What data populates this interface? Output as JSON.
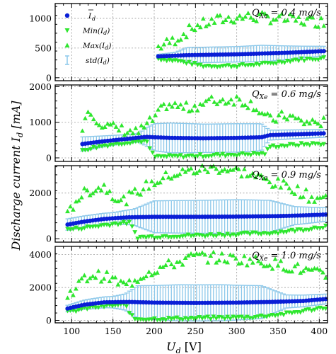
{
  "chart_data": {
    "type": "scatter",
    "xlabel": "U_d [V]",
    "ylabel": "Discharge current I_d [mA]",
    "xlim": [
      80,
      410
    ],
    "xticks": [
      100,
      150,
      200,
      250,
      300,
      350,
      400
    ],
    "shared_x": true,
    "grid": true,
    "legend": {
      "placement": "top-right",
      "entries": [
        "I_d (mean)",
        "Min(I_d)",
        "Max(I_d)",
        "std(I_d)"
      ]
    },
    "colors": {
      "mean": "#0a1fd6",
      "min": "#2ee62e",
      "max": "#2ee62e",
      "std": "#8cc8ea"
    },
    "panels": [
      {
        "annotation": "Q_Xe = 0.4 mg/s",
        "ylim": [
          -50,
          1250
        ],
        "yticks": [
          0,
          500,
          1000
        ],
        "x_start": 205,
        "mean": [
          [
            205,
            360
          ],
          [
            240,
            380
          ],
          [
            300,
            395
          ],
          [
            360,
            420
          ],
          [
            408,
            450
          ]
        ],
        "std": [
          [
            205,
            35
          ],
          [
            225,
            55
          ],
          [
            240,
            130
          ],
          [
            300,
            130
          ],
          [
            330,
            140
          ],
          [
            355,
            120
          ],
          [
            380,
            100
          ],
          [
            408,
            80
          ]
        ],
        "min": [
          [
            205,
            320
          ],
          [
            230,
            280
          ],
          [
            260,
            200
          ],
          [
            300,
            200
          ],
          [
            340,
            240
          ],
          [
            370,
            300
          ],
          [
            408,
            330
          ]
        ],
        "max": [
          [
            205,
            520
          ],
          [
            225,
            640
          ],
          [
            250,
            870
          ],
          [
            280,
            980
          ],
          [
            310,
            1030
          ],
          [
            340,
            1010
          ],
          [
            370,
            970
          ],
          [
            408,
            940
          ]
        ]
      },
      {
        "annotation": "Q_Xe = 0.6 mg/s",
        "ylim": [
          -100,
          2050
        ],
        "yticks": [
          0,
          1000,
          2000
        ],
        "x_start": 113,
        "mean": [
          [
            113,
            390
          ],
          [
            140,
            470
          ],
          [
            170,
            540
          ],
          [
            190,
            590
          ],
          [
            200,
            580
          ],
          [
            220,
            560
          ],
          [
            260,
            550
          ],
          [
            300,
            560
          ],
          [
            330,
            580
          ],
          [
            340,
            640
          ],
          [
            380,
            670
          ],
          [
            408,
            690
          ]
        ],
        "std": [
          [
            113,
            200
          ],
          [
            140,
            150
          ],
          [
            160,
            130
          ],
          [
            180,
            120
          ],
          [
            200,
            380
          ],
          [
            220,
            420
          ],
          [
            260,
            400
          ],
          [
            300,
            400
          ],
          [
            330,
            380
          ],
          [
            340,
            140
          ],
          [
            380,
            120
          ],
          [
            408,
            110
          ]
        ],
        "min": [
          [
            113,
            220
          ],
          [
            140,
            350
          ],
          [
            170,
            440
          ],
          [
            190,
            480
          ],
          [
            200,
            30
          ],
          [
            240,
            50
          ],
          [
            280,
            80
          ],
          [
            320,
            110
          ],
          [
            335,
            120
          ],
          [
            340,
            320
          ],
          [
            380,
            380
          ],
          [
            408,
            400
          ]
        ],
        "max": [
          [
            113,
            900
          ],
          [
            120,
            1350
          ],
          [
            140,
            900
          ],
          [
            160,
            800
          ],
          [
            180,
            700
          ],
          [
            200,
            1100
          ],
          [
            215,
            1500
          ],
          [
            240,
            1400
          ],
          [
            270,
            1600
          ],
          [
            300,
            1650
          ],
          [
            320,
            1500
          ],
          [
            340,
            1050
          ],
          [
            360,
            1200
          ],
          [
            380,
            1000
          ],
          [
            408,
            1000
          ]
        ]
      },
      {
        "annotation": "Q_Xe = 0.9 mg/s",
        "ylim": [
          -150,
          3200
        ],
        "yticks": [
          0,
          2000
        ],
        "x_start": 95,
        "mean": [
          [
            95,
            620
          ],
          [
            115,
            750
          ],
          [
            140,
            870
          ],
          [
            170,
            940
          ],
          [
            200,
            960
          ],
          [
            250,
            960
          ],
          [
            300,
            970
          ],
          [
            350,
            990
          ],
          [
            380,
            1020
          ],
          [
            408,
            1060
          ]
        ],
        "std": [
          [
            95,
            250
          ],
          [
            120,
            250
          ],
          [
            150,
            250
          ],
          [
            175,
            350
          ],
          [
            200,
            700
          ],
          [
            250,
            720
          ],
          [
            300,
            740
          ],
          [
            340,
            700
          ],
          [
            370,
            400
          ],
          [
            408,
            300
          ]
        ],
        "min": [
          [
            95,
            400
          ],
          [
            120,
            500
          ],
          [
            150,
            650
          ],
          [
            170,
            700
          ],
          [
            180,
            60
          ],
          [
            220,
            120
          ],
          [
            260,
            150
          ],
          [
            300,
            200
          ],
          [
            340,
            250
          ],
          [
            380,
            400
          ],
          [
            408,
            550
          ]
        ],
        "max": [
          [
            95,
            1000
          ],
          [
            105,
            1700
          ],
          [
            120,
            2100
          ],
          [
            140,
            2300
          ],
          [
            160,
            1600
          ],
          [
            190,
            2300
          ],
          [
            220,
            2800
          ],
          [
            250,
            3000
          ],
          [
            280,
            3100
          ],
          [
            310,
            2900
          ],
          [
            340,
            2500
          ],
          [
            370,
            2200
          ],
          [
            390,
            1800
          ],
          [
            408,
            1800
          ]
        ]
      },
      {
        "annotation": "Q_Xe = 1.0 mg/s",
        "ylim": [
          -150,
          4500
        ],
        "yticks": [
          0,
          2000,
          4000
        ],
        "x_start": 95,
        "mean": [
          [
            95,
            720
          ],
          [
            115,
            950
          ],
          [
            140,
            1100
          ],
          [
            170,
            1120
          ],
          [
            200,
            1080
          ],
          [
            250,
            1060
          ],
          [
            300,
            1080
          ],
          [
            340,
            1120
          ],
          [
            380,
            1180
          ],
          [
            408,
            1300
          ]
        ],
        "std": [
          [
            95,
            200
          ],
          [
            120,
            300
          ],
          [
            150,
            350
          ],
          [
            165,
            500
          ],
          [
            180,
            1000
          ],
          [
            230,
            1100
          ],
          [
            280,
            1100
          ],
          [
            330,
            1000
          ],
          [
            360,
            400
          ],
          [
            408,
            300
          ]
        ],
        "min": [
          [
            95,
            500
          ],
          [
            120,
            750
          ],
          [
            150,
            900
          ],
          [
            165,
            950
          ],
          [
            175,
            80
          ],
          [
            220,
            100
          ],
          [
            270,
            150
          ],
          [
            320,
            200
          ],
          [
            360,
            400
          ],
          [
            408,
            800
          ]
        ],
        "max": [
          [
            95,
            1500
          ],
          [
            110,
            2300
          ],
          [
            125,
            2800
          ],
          [
            145,
            2600
          ],
          [
            165,
            2100
          ],
          [
            190,
            2900
          ],
          [
            220,
            3400
          ],
          [
            250,
            3900
          ],
          [
            280,
            3800
          ],
          [
            310,
            3700
          ],
          [
            340,
            3500
          ],
          [
            370,
            3200
          ],
          [
            408,
            2700
          ]
        ]
      }
    ]
  }
}
